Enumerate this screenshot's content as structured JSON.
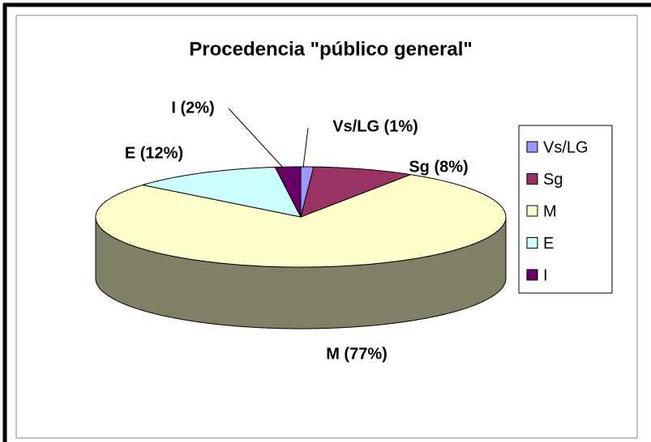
{
  "chart_data": {
    "type": "pie3d",
    "title": "Procedencia \"público general\"",
    "categories": [
      "Vs/LG",
      "Sg",
      "M",
      "E",
      "I"
    ],
    "values": [
      1,
      8,
      77,
      12,
      2
    ],
    "value_labels": [
      "Vs/LG (1%)",
      "Sg (8%)",
      "M (77%)",
      "E (12%)",
      "I (2%)"
    ],
    "colors": [
      "#9999FF",
      "#993366",
      "#FFFFCC",
      "#CCFFFF",
      "#660066"
    ],
    "legend": "right"
  }
}
